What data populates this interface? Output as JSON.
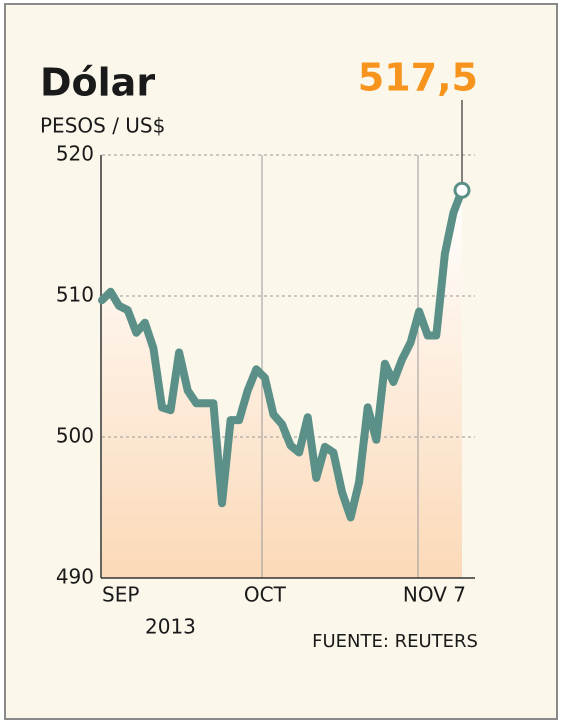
{
  "chart_data": {
    "type": "line",
    "title": "Dólar",
    "subtitle": "PESOS / US$",
    "source": "FUENTE: REUTERS",
    "year_label": "2013",
    "last_value_label": "517,5",
    "categories": [
      "SEP",
      null,
      null,
      null,
      null,
      null,
      null,
      null,
      null,
      null,
      null,
      null,
      null,
      null,
      null,
      null,
      null,
      null,
      null,
      "OCT",
      null,
      null,
      null,
      null,
      null,
      null,
      null,
      null,
      null,
      null,
      null,
      null,
      null,
      null,
      null,
      null,
      null,
      null,
      null,
      null,
      null,
      null,
      "NOV 7"
    ],
    "values": [
      509.7,
      510.3,
      509.3,
      509.0,
      507.4,
      508.1,
      506.3,
      502.1,
      501.9,
      506.0,
      503.3,
      502.4,
      502.4,
      502.4,
      495.3,
      501.2,
      501.2,
      503.3,
      504.8,
      504.2,
      501.6,
      500.9,
      499.4,
      498.9,
      501.4,
      497.1,
      499.3,
      498.9,
      496.1,
      494.3,
      496.8,
      502.1,
      499.8,
      505.2,
      503.9,
      505.5,
      506.7,
      508.9,
      507.2,
      507.2,
      513.0,
      515.9,
      517.5
    ],
    "color": "#5b9088",
    "highlight_color": "#f7941d",
    "ylim": [
      490,
      520
    ],
    "yticks": [
      490,
      500,
      510,
      520
    ],
    "grid": true
  }
}
